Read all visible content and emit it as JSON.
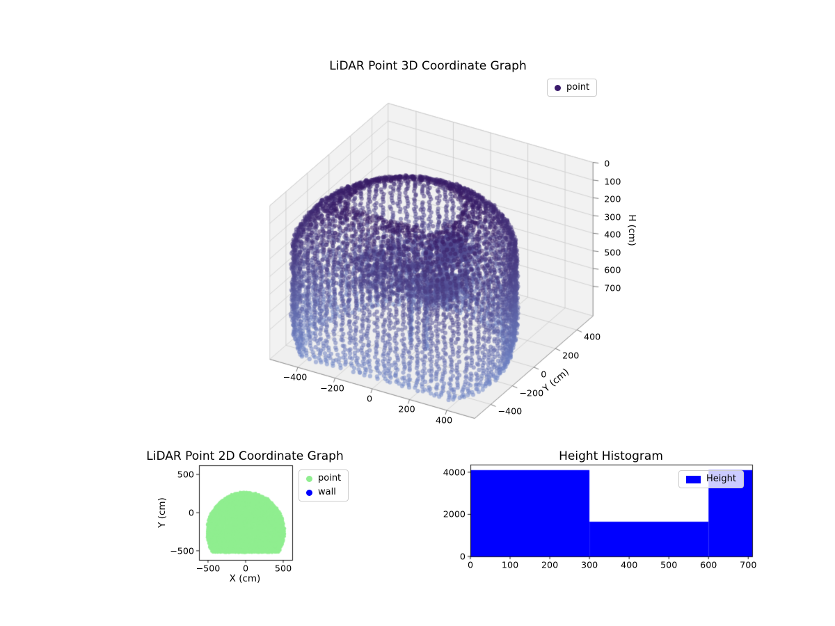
{
  "chart_data": [
    {
      "id": "lidar-3d-scatter",
      "type": "scatter",
      "projection": "3d",
      "title": "LiDAR Point 3D Coordinate Graph",
      "ylabel": "Y (cm)",
      "zlabel": "H (cm)",
      "xlim": [
        -550,
        550
      ],
      "ylim": [
        -550,
        550
      ],
      "zlim": [
        0,
        868
      ],
      "xticks": [
        -400,
        -200,
        0,
        200,
        400
      ],
      "yticks": [
        -400,
        -200,
        0,
        200,
        400
      ],
      "zticks": [
        0,
        100,
        200,
        300,
        400,
        500,
        600,
        700
      ],
      "z_axis_inverted": true,
      "grid": true,
      "legend": {
        "loc": "upper right",
        "items": [
          {
            "label": "point",
            "marker": "circle",
            "color": "#39196b"
          }
        ]
      },
      "colormap": {
        "encodes": "height_cm",
        "low_color": "#371a64",
        "high_color": "#7289c9",
        "alpha": 0.55
      },
      "point_cloud": {
        "shape": "dome-capped cylindrical room scan, vertical point columns on wall",
        "footprint": {
          "circle_center": [
            0,
            -250
          ],
          "radius": 520,
          "flat_cut_y": -520
        },
        "height_range_cm": [
          0,
          845
        ],
        "top_dome_start_cm": 260,
        "wall_columns": 84,
        "points_per_column": 56,
        "interior": {
          "floor_disk": {
            "center": [
              0,
              -180
            ],
            "height_cm": 390,
            "radius_scale": 0.52,
            "count": 620
          },
          "dark_blob": {
            "center": [
              80,
              60,
              360
            ],
            "sigma": [
              60,
              60,
              26
            ],
            "count": 280
          },
          "blue_blob": {
            "center": [
              100,
              -20,
              560
            ],
            "sigma": [
              70,
              70,
              36
            ],
            "count": 280
          },
          "columns": [
            {
              "x": 60,
              "y": -150,
              "h_from": 300,
              "h_to": 845
            },
            {
              "x": -40,
              "y": -120,
              "h_from": 380,
              "h_to": 845
            }
          ],
          "scatter_count": 230
        }
      }
    },
    {
      "id": "lidar-2d-scatter",
      "type": "scatter",
      "title": "LiDAR Point 2D Coordinate Graph",
      "xlabel": "X (cm)",
      "ylabel": "Y (cm)",
      "xlim": [
        -620,
        620
      ],
      "ylim": [
        -620,
        620
      ],
      "xticks": [
        -500,
        0,
        500
      ],
      "yticks": [
        -500,
        0,
        500
      ],
      "legend": {
        "loc": "upper right outside",
        "items": [
          {
            "label": "point",
            "marker": "circle",
            "color": "#90ee90"
          },
          {
            "label": "wall",
            "marker": "circle",
            "color": "#0000ff"
          }
        ]
      },
      "region": {
        "fill": "dense green point region (dome shape, flat bottom)",
        "circle_center": [
          0,
          -250
        ],
        "radius": 520,
        "flat_cut_y": -520,
        "grid_step_cm": 14
      }
    },
    {
      "id": "height-histogram",
      "type": "bar",
      "title": "Height Histogram",
      "xlim": [
        0,
        710
      ],
      "ylim": [
        0,
        4360
      ],
      "xticks": [
        0,
        100,
        200,
        300,
        400,
        500,
        600,
        700
      ],
      "yticks": [
        0,
        2000,
        4000
      ],
      "bar_color": "#0000ff",
      "legend": {
        "loc": "upper right",
        "items": [
          {
            "label": "Height",
            "marker": "rect",
            "color": "#0000ff"
          }
        ]
      },
      "segments": [
        {
          "x_from": 0,
          "x_to": 300,
          "count": 4100
        },
        {
          "x_from": 300,
          "x_to": 600,
          "count": 1650
        },
        {
          "x_from": 600,
          "x_to": 710,
          "count": 4100
        }
      ]
    }
  ]
}
